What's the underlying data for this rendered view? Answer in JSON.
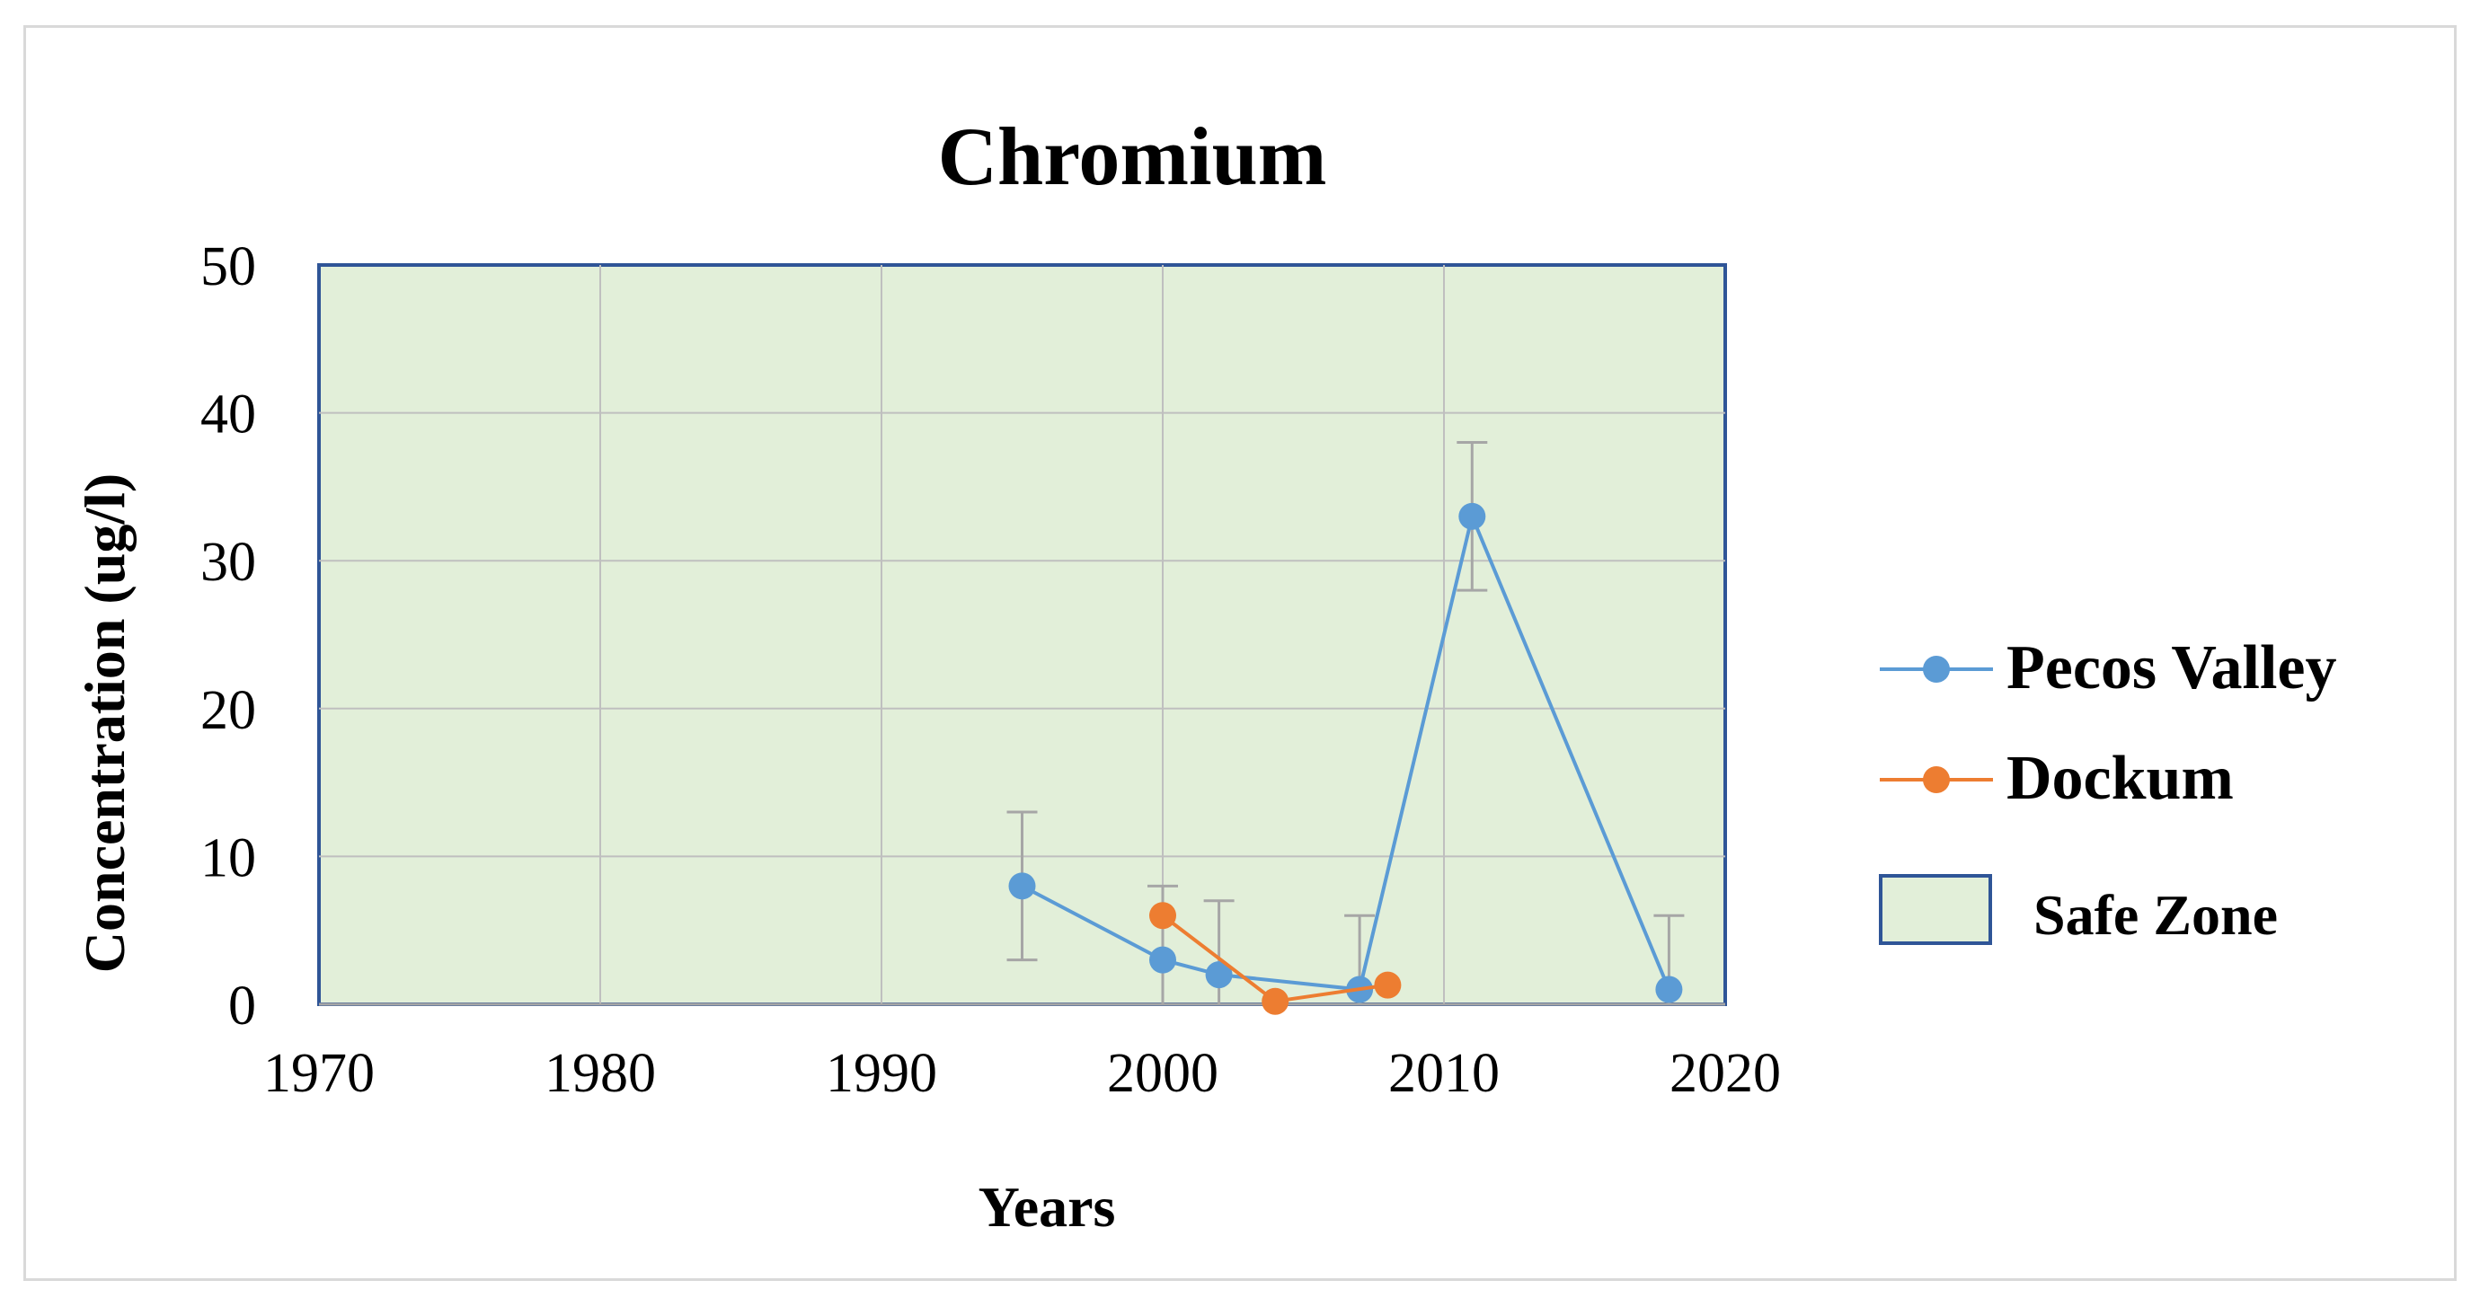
{
  "chart_data": {
    "type": "line",
    "title": "Chromium",
    "xlabel": "Years",
    "ylabel": "Concentration (ug/l)",
    "xlim": [
      1970,
      2020
    ],
    "ylim": [
      0,
      50
    ],
    "xticks": [
      1970,
      1980,
      1990,
      2000,
      2010,
      2020
    ],
    "yticks": [
      0,
      10,
      20,
      30,
      40,
      50
    ],
    "grid": true,
    "legend_position": "right",
    "safe_zone": {
      "label": "Safe Zone",
      "range": [
        0,
        50
      ],
      "fill": "#e2efd9",
      "border": "#2f5597"
    },
    "series": [
      {
        "name": "Pecos Valley",
        "color": "#5b9bd5",
        "points": [
          {
            "x": 1995,
            "y": 8,
            "err_low": 5,
            "err_high": 5
          },
          {
            "x": 2000,
            "y": 3,
            "err_low": 3,
            "err_high": 5
          },
          {
            "x": 2002,
            "y": 2,
            "err_low": 2,
            "err_high": 5
          },
          {
            "x": 2007,
            "y": 1,
            "err_low": 1,
            "err_high": 5
          },
          {
            "x": 2011,
            "y": 33,
            "err_low": 5,
            "err_high": 5
          },
          {
            "x": 2018,
            "y": 1,
            "err_low": 1,
            "err_high": 5
          }
        ]
      },
      {
        "name": "Dockum",
        "color": "#ed7d31",
        "points": [
          {
            "x": 2000,
            "y": 6
          },
          {
            "x": 2004,
            "y": 0.2
          },
          {
            "x": 2008,
            "y": 1.3
          }
        ]
      }
    ]
  },
  "colors": {
    "gridline": "#bfbfbf",
    "errorbar": "#a6a6a6",
    "axis_line": "#a6a6a6"
  }
}
